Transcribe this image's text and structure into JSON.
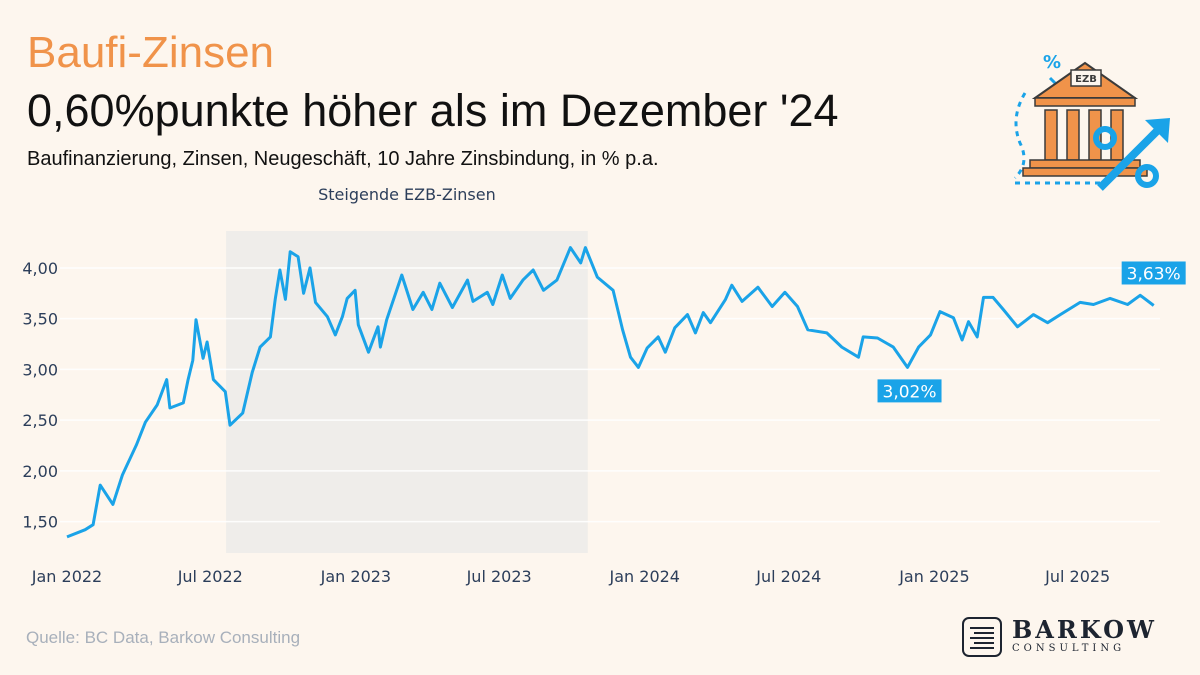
{
  "header": {
    "kicker": "Baufi-Zinsen",
    "headline": "0,60%punkte höher als im Dezember '24",
    "subtitle": "Baufinanzierung, Zinsen, Neugeschäft, 10 Jahre Zinsbindung, in % p.a."
  },
  "source": "Quelle: BC Data, Barkow Consulting",
  "logo": {
    "main": "BARKOW",
    "sub": "CONSULTING"
  },
  "icon": {
    "name": "ezb-bank-percent-icon",
    "label": "EZB"
  },
  "colors": {
    "line": "#1aa3e8",
    "accent": "#f0934a",
    "shade": "#efedea",
    "background": "#fdf6ee"
  },
  "chart_data": {
    "type": "line",
    "title": "",
    "xlabel": "",
    "ylabel": "",
    "xlim": [
      "2022-01-01",
      "2025-10-13"
    ],
    "ylim": [
      1.25,
      4.3
    ],
    "grid": true,
    "x_ticks": [
      {
        "date": "2022-01-01",
        "label": "Jan 2022"
      },
      {
        "date": "2022-07-01",
        "label": "Jul 2022"
      },
      {
        "date": "2023-01-01",
        "label": "Jan 2023"
      },
      {
        "date": "2023-07-01",
        "label": "Jul 2023"
      },
      {
        "date": "2024-01-01",
        "label": "Jan 2024"
      },
      {
        "date": "2024-07-01",
        "label": "Jul 2024"
      },
      {
        "date": "2025-01-01",
        "label": "Jan 2025"
      },
      {
        "date": "2025-07-01",
        "label": "Jul 2025"
      }
    ],
    "y_ticks": [
      {
        "value": 1.5,
        "label": "1,50"
      },
      {
        "value": 2.0,
        "label": "2,00"
      },
      {
        "value": 2.5,
        "label": "2,50"
      },
      {
        "value": 3.0,
        "label": "3,00"
      },
      {
        "value": 3.5,
        "label": "3,50"
      },
      {
        "value": 4.0,
        "label": "4,00"
      }
    ],
    "shaded_period": {
      "start": "2022-07-21",
      "end": "2023-10-21",
      "label": "Steigende EZB-Zinsen"
    },
    "annotations": [
      {
        "date": "2024-11-28",
        "value": 3.02,
        "label": "3,02%",
        "position": "below"
      },
      {
        "date": "2025-10-05",
        "value": 3.63,
        "label": "3,63%",
        "position": "above"
      }
    ],
    "series": [
      {
        "points": [
          [
            "2022-01-01",
            1.35
          ],
          [
            "2022-01-24",
            1.42
          ],
          [
            "2022-02-03",
            1.47
          ],
          [
            "2022-02-12",
            1.86
          ],
          [
            "2022-02-28",
            1.67
          ],
          [
            "2022-03-12",
            1.96
          ],
          [
            "2022-03-30",
            2.26
          ],
          [
            "2022-04-10",
            2.48
          ],
          [
            "2022-04-25",
            2.65
          ],
          [
            "2022-05-07",
            2.9
          ],
          [
            "2022-05-11",
            2.62
          ],
          [
            "2022-05-28",
            2.67
          ],
          [
            "2022-06-03",
            2.9
          ],
          [
            "2022-06-09",
            3.09
          ],
          [
            "2022-06-13",
            3.49
          ],
          [
            "2022-06-22",
            3.11
          ],
          [
            "2022-06-27",
            3.27
          ],
          [
            "2022-07-05",
            2.9
          ],
          [
            "2022-07-20",
            2.78
          ],
          [
            "2022-07-26",
            2.45
          ],
          [
            "2022-08-11",
            2.57
          ],
          [
            "2022-08-23",
            2.97
          ],
          [
            "2022-09-02",
            3.22
          ],
          [
            "2022-09-15",
            3.32
          ],
          [
            "2022-09-21",
            3.69
          ],
          [
            "2022-09-27",
            3.98
          ],
          [
            "2022-10-04",
            3.69
          ],
          [
            "2022-10-10",
            4.16
          ],
          [
            "2022-10-20",
            4.11
          ],
          [
            "2022-10-27",
            3.75
          ],
          [
            "2022-11-04",
            4.0
          ],
          [
            "2022-11-11",
            3.66
          ],
          [
            "2022-11-26",
            3.52
          ],
          [
            "2022-12-06",
            3.34
          ],
          [
            "2022-12-15",
            3.52
          ],
          [
            "2022-12-21",
            3.7
          ],
          [
            "2022-12-31",
            3.78
          ],
          [
            "2023-01-04",
            3.44
          ],
          [
            "2023-01-17",
            3.17
          ],
          [
            "2023-01-29",
            3.42
          ],
          [
            "2023-02-01",
            3.22
          ],
          [
            "2023-02-09",
            3.49
          ],
          [
            "2023-02-28",
            3.93
          ],
          [
            "2023-03-14",
            3.59
          ],
          [
            "2023-03-27",
            3.76
          ],
          [
            "2023-04-07",
            3.59
          ],
          [
            "2023-04-17",
            3.85
          ],
          [
            "2023-05-03",
            3.61
          ],
          [
            "2023-05-22",
            3.88
          ],
          [
            "2023-05-29",
            3.67
          ],
          [
            "2023-06-16",
            3.76
          ],
          [
            "2023-06-23",
            3.64
          ],
          [
            "2023-07-05",
            3.93
          ],
          [
            "2023-07-15",
            3.7
          ],
          [
            "2023-07-31",
            3.88
          ],
          [
            "2023-08-13",
            3.98
          ],
          [
            "2023-08-26",
            3.78
          ],
          [
            "2023-09-12",
            3.88
          ],
          [
            "2023-09-29",
            4.2
          ],
          [
            "2023-10-12",
            4.05
          ],
          [
            "2023-10-18",
            4.2
          ],
          [
            "2023-11-02",
            3.91
          ],
          [
            "2023-11-22",
            3.78
          ],
          [
            "2023-12-04",
            3.39
          ],
          [
            "2023-12-14",
            3.12
          ],
          [
            "2023-12-24",
            3.02
          ],
          [
            "2024-01-04",
            3.21
          ],
          [
            "2024-01-18",
            3.32
          ],
          [
            "2024-01-27",
            3.17
          ],
          [
            "2024-02-08",
            3.41
          ],
          [
            "2024-02-24",
            3.54
          ],
          [
            "2024-03-05",
            3.36
          ],
          [
            "2024-03-15",
            3.56
          ],
          [
            "2024-03-24",
            3.46
          ],
          [
            "2024-04-12",
            3.69
          ],
          [
            "2024-04-20",
            3.83
          ],
          [
            "2024-05-03",
            3.67
          ],
          [
            "2024-05-23",
            3.81
          ],
          [
            "2024-06-10",
            3.62
          ],
          [
            "2024-06-26",
            3.76
          ],
          [
            "2024-07-12",
            3.62
          ],
          [
            "2024-07-25",
            3.39
          ],
          [
            "2024-08-18",
            3.36
          ],
          [
            "2024-09-06",
            3.22
          ],
          [
            "2024-09-27",
            3.12
          ],
          [
            "2024-10-03",
            3.32
          ],
          [
            "2024-10-21",
            3.31
          ],
          [
            "2024-11-10",
            3.22
          ],
          [
            "2024-11-28",
            3.02
          ],
          [
            "2024-12-12",
            3.22
          ],
          [
            "2024-12-27",
            3.34
          ],
          [
            "2025-01-08",
            3.57
          ],
          [
            "2025-01-25",
            3.51
          ],
          [
            "2025-02-05",
            3.29
          ],
          [
            "2025-02-13",
            3.47
          ],
          [
            "2025-02-24",
            3.32
          ],
          [
            "2025-03-04",
            3.71
          ],
          [
            "2025-03-16",
            3.71
          ],
          [
            "2025-03-29",
            3.59
          ],
          [
            "2025-04-16",
            3.42
          ],
          [
            "2025-05-06",
            3.54
          ],
          [
            "2025-05-24",
            3.46
          ],
          [
            "2025-06-09",
            3.54
          ],
          [
            "2025-07-04",
            3.66
          ],
          [
            "2025-07-21",
            3.64
          ],
          [
            "2025-08-11",
            3.7
          ],
          [
            "2025-09-02",
            3.64
          ],
          [
            "2025-09-18",
            3.73
          ],
          [
            "2025-10-05",
            3.63
          ]
        ]
      }
    ]
  }
}
